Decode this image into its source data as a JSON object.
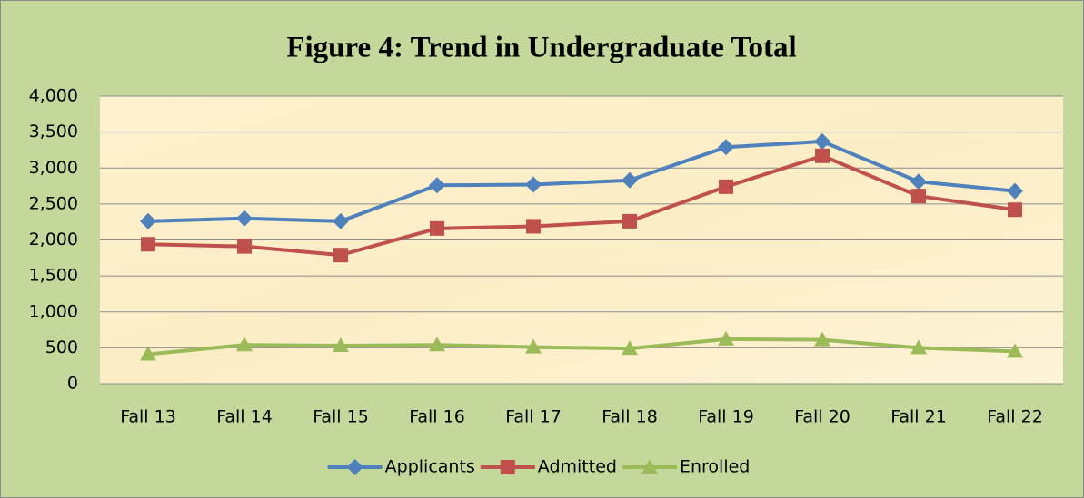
{
  "chart_data": {
    "type": "line",
    "title": "Figure 4: Trend in Undergraduate Total",
    "categories": [
      "Fall 13",
      "Fall 14",
      "Fall 15",
      "Fall 16",
      "Fall 17",
      "Fall 18",
      "Fall 19",
      "Fall 20",
      "Fall 21",
      "Fall 22"
    ],
    "series": [
      {
        "name": "Applicants",
        "color": "#4f81bd",
        "marker": "diamond",
        "values": [
          2260,
          2300,
          2260,
          2760,
          2770,
          2830,
          3290,
          3370,
          2810,
          2680
        ]
      },
      {
        "name": "Admitted",
        "color": "#c0504d",
        "marker": "square",
        "values": [
          1940,
          1910,
          1790,
          2160,
          2190,
          2260,
          2740,
          3170,
          2610,
          2420
        ]
      },
      {
        "name": "Enrolled",
        "color": "#9bbb59",
        "marker": "triangle",
        "values": [
          410,
          540,
          530,
          540,
          510,
          490,
          620,
          610,
          500,
          450
        ]
      }
    ],
    "ylim": [
      0,
      4000
    ],
    "yticks": [
      0,
      500,
      {
        "value": 1000,
        "label": "1,000"
      },
      {
        "value": 1500,
        "label": "1,500"
      },
      {
        "value": 2000,
        "label": "2,000"
      },
      {
        "value": 2500,
        "label": "2,500"
      },
      {
        "value": 3000,
        "label": "3,000"
      },
      {
        "value": 3500,
        "label": "3,500"
      },
      {
        "value": 4000,
        "label": "4,000"
      }
    ],
    "grid": true,
    "legend": "bottom"
  }
}
